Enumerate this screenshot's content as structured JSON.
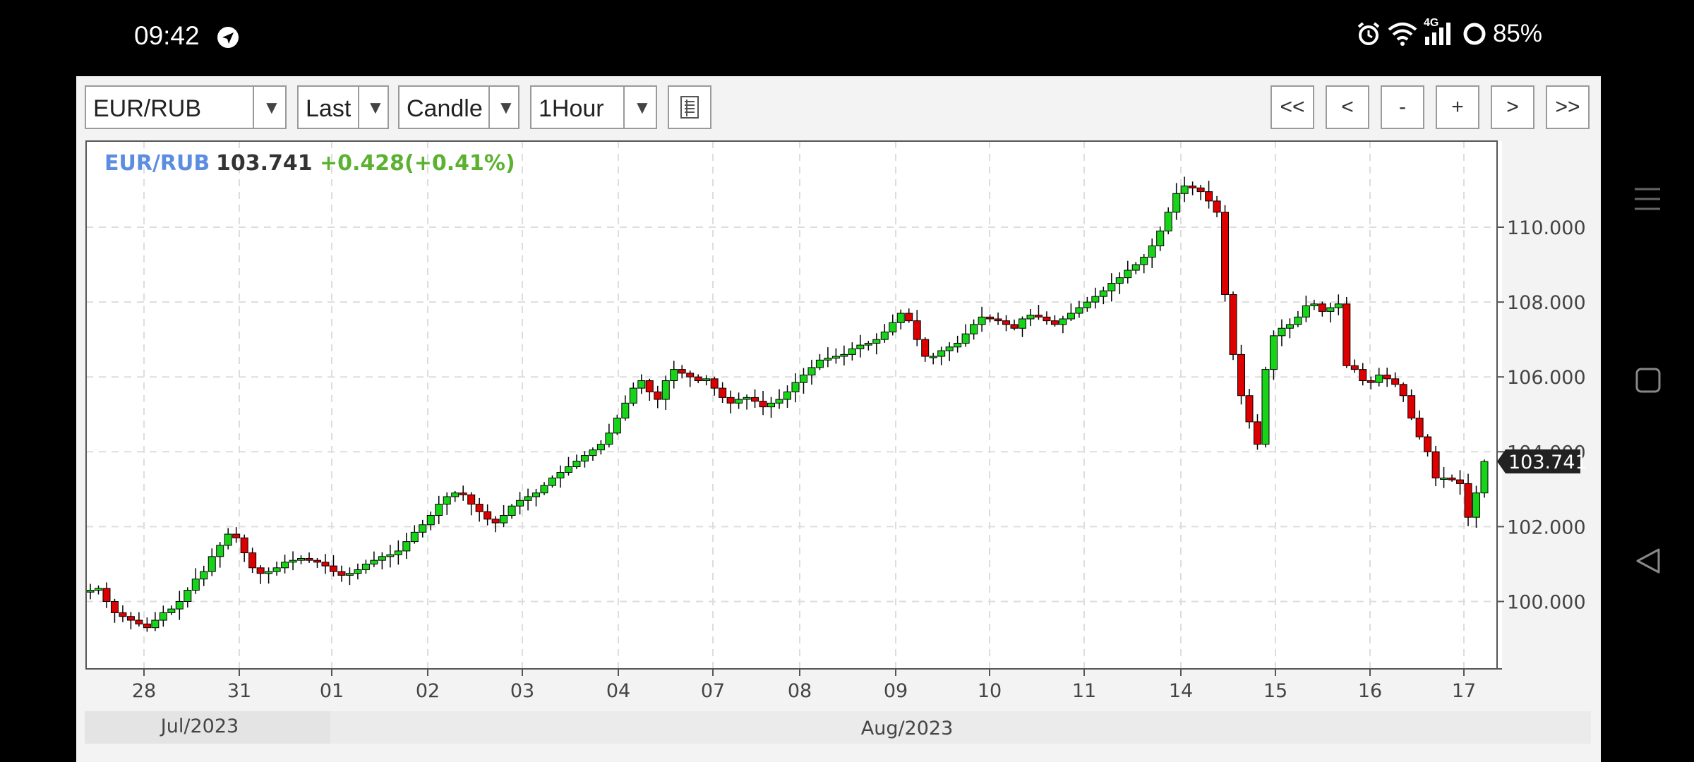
{
  "status": {
    "time": "09:42",
    "network": "4G",
    "battery": "85%"
  },
  "toolbar": {
    "symbol": "EUR/RUB",
    "price_type": "Last",
    "chart_style": "Candle",
    "interval": "1Hour",
    "nav_buttons": [
      "<<",
      "<",
      "-",
      "+",
      ">",
      ">>"
    ]
  },
  "header": {
    "symbol": "EUR/RUB",
    "last": "103.741",
    "change": "+0.428(+0.41%)",
    "colors": {
      "symbol": "#5b8de0",
      "last": "#333333",
      "change": "#5cb230"
    }
  },
  "chart_data": {
    "type": "candlestick",
    "title": "EUR/RUB",
    "x_tick_labels": [
      "28",
      "31",
      "01",
      "02",
      "03",
      "04",
      "07",
      "08",
      "09",
      "10",
      "11",
      "14",
      "15",
      "16",
      "17"
    ],
    "x_period_labels": [
      "Jul/2023",
      "Aug/2023"
    ],
    "y_tick_labels": [
      "100.000",
      "102.000",
      "104.000",
      "106.000",
      "108.000",
      "110.000"
    ],
    "ylim": [
      98.2,
      112.3
    ],
    "last_price_label": "103.741",
    "grid": true,
    "colors": {
      "up": "#18d418",
      "down": "#dd0000",
      "wick": "#000000"
    },
    "close_path": [
      100.3,
      100.35,
      100.0,
      99.7,
      99.6,
      99.5,
      99.4,
      99.3,
      99.5,
      99.7,
      99.8,
      100.0,
      100.3,
      100.6,
      100.8,
      101.2,
      101.5,
      101.8,
      101.7,
      101.3,
      100.9,
      100.75,
      100.8,
      100.9,
      101.05,
      101.1,
      101.15,
      101.1,
      101.05,
      100.95,
      100.8,
      100.7,
      100.75,
      100.85,
      101.0,
      101.1,
      101.2,
      101.25,
      101.35,
      101.6,
      101.85,
      102.05,
      102.3,
      102.6,
      102.8,
      102.9,
      102.85,
      102.6,
      102.4,
      102.2,
      102.1,
      102.3,
      102.55,
      102.7,
      102.8,
      102.9,
      103.1,
      103.3,
      103.45,
      103.6,
      103.75,
      103.9,
      104.05,
      104.2,
      104.5,
      104.9,
      105.3,
      105.7,
      105.9,
      105.6,
      105.4,
      105.9,
      106.2,
      106.1,
      106.0,
      105.9,
      105.95,
      105.7,
      105.45,
      105.3,
      105.4,
      105.45,
      105.35,
      105.2,
      105.3,
      105.4,
      105.6,
      105.85,
      106.05,
      106.25,
      106.45,
      106.5,
      106.55,
      106.6,
      106.75,
      106.85,
      106.9,
      107.0,
      107.2,
      107.45,
      107.7,
      107.5,
      107.0,
      106.55,
      106.55,
      106.7,
      106.8,
      106.9,
      107.15,
      107.4,
      107.6,
      107.55,
      107.5,
      107.4,
      107.3,
      107.55,
      107.65,
      107.6,
      107.5,
      107.4,
      107.55,
      107.7,
      107.85,
      108.0,
      108.15,
      108.3,
      108.5,
      108.65,
      108.85,
      109.0,
      109.2,
      109.5,
      109.9,
      110.4,
      110.9,
      111.1,
      111.05,
      110.95,
      110.7,
      110.4,
      108.2,
      106.6,
      105.5,
      104.8,
      104.2,
      106.2,
      107.1,
      107.3,
      107.4,
      107.6,
      107.9,
      107.95,
      107.75,
      107.85,
      107.95,
      106.3,
      106.2,
      105.9,
      105.85,
      106.05,
      105.95,
      105.8,
      105.5,
      104.9,
      104.4,
      104.0,
      103.3,
      103.3,
      103.25,
      103.15,
      102.25,
      102.9,
      103.74
    ]
  }
}
